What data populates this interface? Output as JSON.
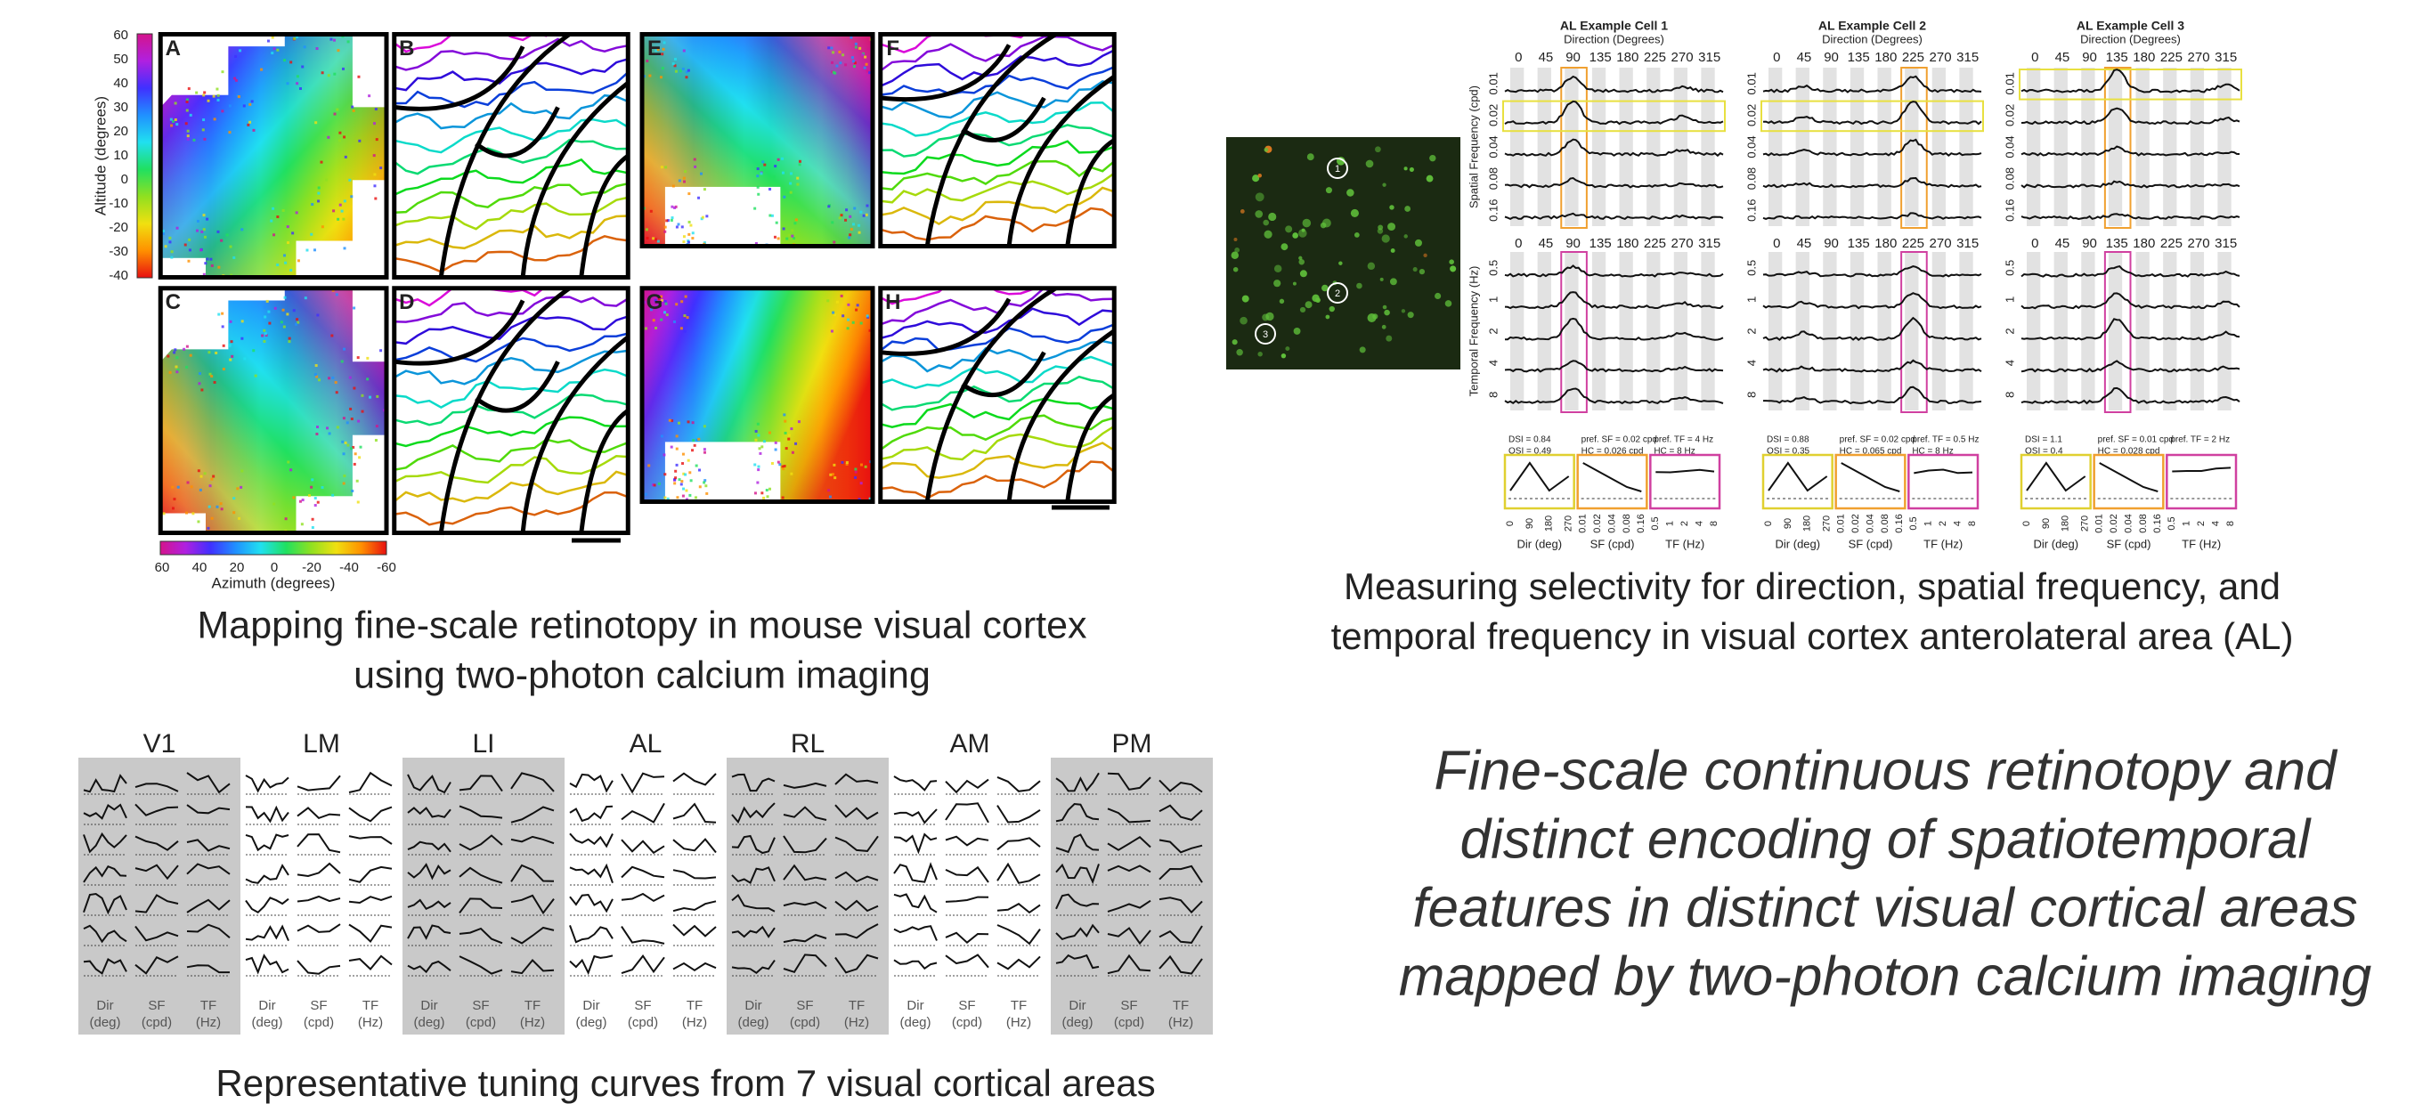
{
  "retinotopy": {
    "panel_letters": [
      "A",
      "B",
      "C",
      "D",
      "E",
      "F",
      "G",
      "H"
    ],
    "altitude_ticks": [
      "60",
      "50",
      "40",
      "30",
      "20",
      "10",
      "0",
      "-10",
      "-20",
      "-30",
      "-40"
    ],
    "altitude_label": "Altitude (degrees)",
    "azimuth_ticks": [
      "60",
      "40",
      "20",
      "0",
      "-20",
      "-40",
      "-60"
    ],
    "azimuth_label": "Azimuth (degrees)",
    "caption": [
      "Mapping fine-scale retinotopy in mouse visual cortex",
      "using two-photon calcium imaging"
    ]
  },
  "selectivity": {
    "cell_labels": [
      "1",
      "2",
      "3"
    ],
    "cells": [
      {
        "title": "AL Example Cell 1",
        "stats": [
          [
            "DSI = 0.84",
            "OSI = 0.49"
          ],
          [
            "pref. SF = 0.02 cpd",
            "HC = 0.026 cpd"
          ],
          [
            "pref. TF = 4 Hz",
            "HC = 8 Hz"
          ]
        ]
      },
      {
        "title": "AL Example Cell 2",
        "stats": [
          [
            "DSI = 0.88",
            "OSI = 0.35"
          ],
          [
            "pref. SF = 0.02 cpd",
            "HC = 0.065 cpd"
          ],
          [
            "pref. TF = 0.5 Hz",
            "HC = 8 Hz"
          ]
        ]
      },
      {
        "title": "AL Example Cell 3",
        "stats": [
          [
            "DSI = 1.1",
            "OSI = 0.4"
          ],
          [
            "pref. SF = 0.01 cpd",
            "HC = 0.028 cpd"
          ],
          [
            "pref. TF = 2 Hz"
          ]
        ]
      }
    ],
    "direction_title": "Direction (Degrees)",
    "direction_ticks": [
      "0",
      "45",
      "90",
      "135",
      "180",
      "225",
      "270",
      "315"
    ],
    "sf_label": "Spatial Frequency (cpd)",
    "sf_ticks": [
      "0.01",
      "0.02",
      "0.04",
      "0.08",
      "0.16"
    ],
    "tf_label": "Temporal Frequency (Hz)",
    "tf_ticks": [
      "0.5",
      "1",
      "2",
      "4",
      "8"
    ],
    "dir_summary_ticks": [
      "0",
      "90",
      "180",
      "270"
    ],
    "summary_labels": [
      "Dir (deg)",
      "SF (cpd)",
      "TF (Hz)"
    ],
    "caption": [
      "Measuring selectivity for direction, spatial frequency, and",
      "temporal frequency in visual cortex anterolateral area (AL)"
    ]
  },
  "tuning": {
    "areas": [
      "V1",
      "LM",
      "LI",
      "AL",
      "RL",
      "AM",
      "PM"
    ],
    "column_labels": [
      [
        "Dir",
        "(deg)"
      ],
      [
        "SF",
        "(cpd)"
      ],
      [
        "TF",
        "(Hz)"
      ]
    ],
    "caption": "Representative tuning curves from 7 visual cortical areas"
  },
  "summary": [
    "Fine-scale continuous retinotopy and",
    "distinct encoding of spatiotemporal",
    "features in distinct visual cortical areas",
    "mapped by two-photon calcium imaging"
  ]
}
